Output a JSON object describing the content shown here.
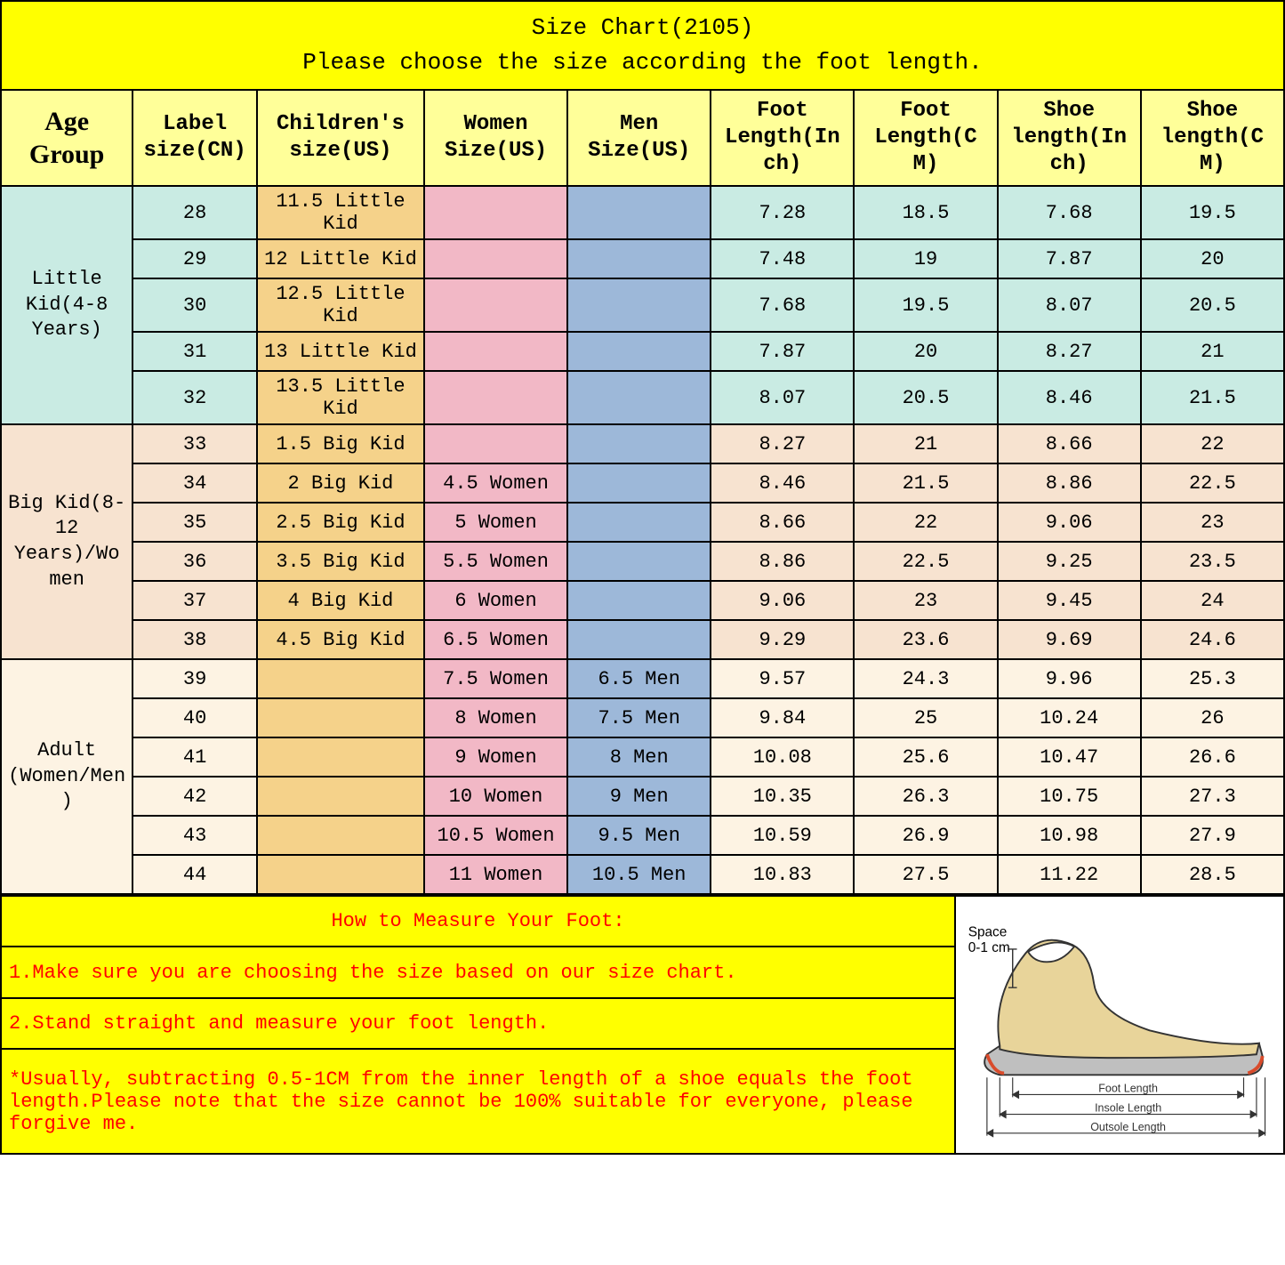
{
  "title_line1": "Size Chart(2105)",
  "title_line2": "Please choose the size according the foot length.",
  "headers": {
    "age": "Age Group",
    "label": "Label size(CN)",
    "child": "Children's size(US)",
    "women": "Women Size(US)",
    "men": "Men Size(US)",
    "fli": "Foot Length(In ch)",
    "flc": "Foot Length(C M)",
    "sli": "Shoe length(In ch)",
    "slc": "Shoe length(C M)"
  },
  "groups": [
    {
      "name": "Little Kid(4-8 Years)",
      "palette": {
        "age": "#c9ebe3",
        "label": "#c9ebe3",
        "child": "#f5d28a",
        "women": "#f2b8c6",
        "men": "#9db8d9",
        "fli": "#c9ebe3",
        "flc": "#c9ebe3",
        "sli": "#c9ebe3",
        "slc": "#c9ebe3"
      },
      "rows": [
        {
          "label": "28",
          "child": "11.5 Little Kid",
          "women": "",
          "men": "",
          "fli": "7.28",
          "flc": "18.5",
          "sli": "7.68",
          "slc": "19.5"
        },
        {
          "label": "29",
          "child": "12 Little Kid",
          "women": "",
          "men": "",
          "fli": "7.48",
          "flc": "19",
          "sli": "7.87",
          "slc": "20"
        },
        {
          "label": "30",
          "child": "12.5 Little Kid",
          "women": "",
          "men": "",
          "fli": "7.68",
          "flc": "19.5",
          "sli": "8.07",
          "slc": "20.5"
        },
        {
          "label": "31",
          "child": "13 Little Kid",
          "women": "",
          "men": "",
          "fli": "7.87",
          "flc": "20",
          "sli": "8.27",
          "slc": "21"
        },
        {
          "label": "32",
          "child": "13.5 Little Kid",
          "women": "",
          "men": "",
          "fli": "8.07",
          "flc": "20.5",
          "sli": "8.46",
          "slc": "21.5"
        }
      ]
    },
    {
      "name": "Big Kid(8-12 Years)/Wo men",
      "palette": {
        "age": "#f7e3d0",
        "label": "#f7e3d0",
        "child": "#f5d28a",
        "women": "#f2b8c6",
        "men": "#9db8d9",
        "fli": "#f7e3d0",
        "flc": "#f7e3d0",
        "sli": "#f7e3d0",
        "slc": "#f7e3d0"
      },
      "rows": [
        {
          "label": "33",
          "child": "1.5 Big Kid",
          "women": "",
          "men": "",
          "fli": "8.27",
          "flc": "21",
          "sli": "8.66",
          "slc": "22"
        },
        {
          "label": "34",
          "child": "2 Big Kid",
          "women": "4.5 Women",
          "men": "",
          "fli": "8.46",
          "flc": "21.5",
          "sli": "8.86",
          "slc": "22.5"
        },
        {
          "label": "35",
          "child": "2.5 Big Kid",
          "women": "5 Women",
          "men": "",
          "fli": "8.66",
          "flc": "22",
          "sli": "9.06",
          "slc": "23"
        },
        {
          "label": "36",
          "child": "3.5 Big Kid",
          "women": "5.5 Women",
          "men": "",
          "fli": "8.86",
          "flc": "22.5",
          "sli": "9.25",
          "slc": "23.5"
        },
        {
          "label": "37",
          "child": "4 Big Kid",
          "women": "6 Women",
          "men": "",
          "fli": "9.06",
          "flc": "23",
          "sli": "9.45",
          "slc": "24"
        },
        {
          "label": "38",
          "child": "4.5 Big Kid",
          "women": "6.5 Women",
          "men": "",
          "fli": "9.29",
          "flc": "23.6",
          "sli": "9.69",
          "slc": "24.6"
        }
      ]
    },
    {
      "name": "Adult (Women/Men )",
      "palette": {
        "age": "#fdf3e3",
        "label": "#fdf3e3",
        "child": "#f5d28a",
        "women": "#f2b8c6",
        "men": "#9db8d9",
        "fli": "#fdf3e3",
        "flc": "#fdf3e3",
        "sli": "#fdf3e3",
        "slc": "#fdf3e3"
      },
      "rows": [
        {
          "label": "39",
          "child": "",
          "women": "7.5 Women",
          "men": "6.5 Men",
          "fli": "9.57",
          "flc": "24.3",
          "sli": "9.96",
          "slc": "25.3"
        },
        {
          "label": "40",
          "child": "",
          "women": "8 Women",
          "men": "7.5 Men",
          "fli": "9.84",
          "flc": "25",
          "sli": "10.24",
          "slc": "26"
        },
        {
          "label": "41",
          "child": "",
          "women": "9 Women",
          "men": "8 Men",
          "fli": "10.08",
          "flc": "25.6",
          "sli": "10.47",
          "slc": "26.6"
        },
        {
          "label": "42",
          "child": "",
          "women": "10 Women",
          "men": "9 Men",
          "fli": "10.35",
          "flc": "26.3",
          "sli": "10.75",
          "slc": "27.3"
        },
        {
          "label": "43",
          "child": "",
          "women": "10.5 Women",
          "men": "9.5 Men",
          "fli": "10.59",
          "flc": "26.9",
          "sli": "10.98",
          "slc": "27.9"
        },
        {
          "label": "44",
          "child": "",
          "women": "11 Women",
          "men": "10.5 Men",
          "fli": "10.83",
          "flc": "27.5",
          "sli": "11.22",
          "slc": "28.5"
        }
      ]
    }
  ],
  "footer": {
    "title": "How to Measure Your Foot:",
    "line1": "1.Make sure you are choosing the size based on our size chart.",
    "line2": "2.Stand straight and measure your foot length.",
    "note": "*Usually, subtracting 0.5-1CM from the inner length of a shoe equals the foot length.Please note that the size cannot be 100% suitable for everyone, please forgive me."
  },
  "diagram": {
    "space_label": "Space",
    "space_value": "0-1 cm",
    "foot_length": "Foot Length",
    "insole_length": "Insole Length",
    "outsole_length": "Outsole Length",
    "shoe_fill": "#e8d49a",
    "shoe_stroke": "#333333",
    "accent": "#d94b2b"
  },
  "header_bg": "#ffff99",
  "title_bg": "#ffff00"
}
